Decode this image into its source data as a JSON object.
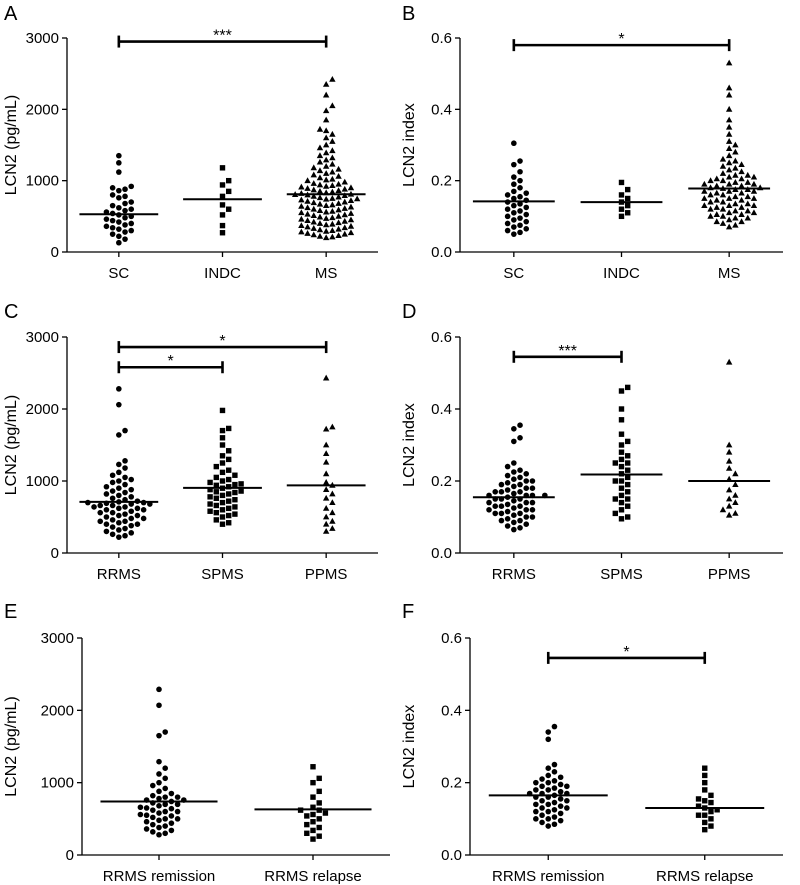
{
  "panels": [
    {
      "id": "A",
      "panel_label": "A"
    },
    {
      "id": "B",
      "panel_label": "B"
    },
    {
      "id": "C",
      "panel_label": "C"
    },
    {
      "id": "D",
      "panel_label": "D"
    },
    {
      "id": "E",
      "panel_label": "E"
    },
    {
      "id": "F",
      "panel_label": "F"
    }
  ],
  "chart_data": [
    {
      "panel": "A",
      "type": "scatter",
      "ylabel": "LCN2 (pg/mL)",
      "ylim": [
        0,
        3000
      ],
      "yticks": [
        "0",
        "1000",
        "2000",
        "3000"
      ],
      "categories": [
        "SC",
        "INDC",
        "MS"
      ],
      "markers": [
        "circle",
        "square",
        "triangle"
      ],
      "medians": [
        530,
        740,
        810
      ],
      "groups": [
        [
          1350,
          1250,
          1120,
          920,
          900,
          880,
          860,
          800,
          780,
          760,
          700,
          680,
          650,
          620,
          600,
          580,
          560,
          540,
          520,
          500,
          480,
          460,
          440,
          420,
          400,
          380,
          360,
          340,
          320,
          300,
          280,
          250,
          220,
          180,
          130
        ],
        [
          1180,
          1000,
          940,
          850,
          780,
          660,
          600,
          520,
          370,
          270
        ],
        [
          2420,
          2350,
          2200,
          2050,
          1980,
          1850,
          1720,
          1700,
          1650,
          1600,
          1550,
          1500,
          1460,
          1420,
          1390,
          1350,
          1320,
          1290,
          1260,
          1230,
          1200,
          1180,
          1160,
          1140,
          1120,
          1100,
          1080,
          1060,
          1040,
          1020,
          1010,
          1000,
          980,
          960,
          950,
          940,
          930,
          920,
          910,
          900,
          890,
          880,
          870,
          860,
          850,
          840,
          830,
          820,
          810,
          805,
          800,
          790,
          780,
          770,
          760,
          750,
          745,
          740,
          730,
          720,
          710,
          700,
          690,
          680,
          670,
          660,
          650,
          640,
          630,
          620,
          610,
          600,
          590,
          580,
          570,
          560,
          550,
          540,
          530,
          520,
          510,
          500,
          490,
          480,
          470,
          460,
          450,
          440,
          430,
          420,
          410,
          400,
          390,
          380,
          370,
          360,
          350,
          340,
          330,
          320,
          310,
          300,
          290,
          280,
          270,
          260,
          250,
          240,
          230,
          220,
          210,
          200
        ]
      ],
      "brackets": [
        {
          "from": 0,
          "to": 2,
          "y": 2950,
          "label": "***"
        }
      ]
    },
    {
      "panel": "B",
      "type": "scatter",
      "ylabel": "LCN2 index",
      "ylim": [
        0,
        0.6
      ],
      "yticks": [
        "0.0",
        "0.2",
        "0.4",
        "0.6"
      ],
      "categories": [
        "SC",
        "INDC",
        "MS"
      ],
      "markers": [
        "circle",
        "square",
        "triangle"
      ],
      "medians": [
        0.142,
        0.14,
        0.178
      ],
      "groups": [
        [
          0.305,
          0.255,
          0.245,
          0.225,
          0.21,
          0.2,
          0.19,
          0.18,
          0.17,
          0.165,
          0.16,
          0.155,
          0.15,
          0.145,
          0.14,
          0.135,
          0.13,
          0.125,
          0.12,
          0.115,
          0.11,
          0.105,
          0.1,
          0.095,
          0.09,
          0.085,
          0.08,
          0.075,
          0.07,
          0.065,
          0.06,
          0.055,
          0.05
        ],
        [
          0.195,
          0.175,
          0.16,
          0.15,
          0.14,
          0.13,
          0.12,
          0.11,
          0.1
        ],
        [
          0.53,
          0.46,
          0.44,
          0.4,
          0.37,
          0.35,
          0.33,
          0.31,
          0.3,
          0.29,
          0.28,
          0.27,
          0.26,
          0.255,
          0.25,
          0.245,
          0.24,
          0.235,
          0.23,
          0.225,
          0.22,
          0.215,
          0.21,
          0.205,
          0.2,
          0.195,
          0.19,
          0.185,
          0.18,
          0.178,
          0.175,
          0.17,
          0.165,
          0.16,
          0.155,
          0.15,
          0.145,
          0.14,
          0.135,
          0.13,
          0.125,
          0.12,
          0.115,
          0.11,
          0.105,
          0.1,
          0.095,
          0.09,
          0.085,
          0.08,
          0.075,
          0.07,
          0.215,
          0.205,
          0.195,
          0.185,
          0.175,
          0.165,
          0.155,
          0.145,
          0.135,
          0.125,
          0.115,
          0.105,
          0.095,
          0.085,
          0.19,
          0.17,
          0.15,
          0.13,
          0.11,
          0.2,
          0.18,
          0.16,
          0.14,
          0.12,
          0.1,
          0.21,
          0.19,
          0.17,
          0.15,
          0.13
        ]
      ],
      "brackets": [
        {
          "from": 0,
          "to": 2,
          "y": 0.58,
          "label": "*"
        }
      ]
    },
    {
      "panel": "C",
      "type": "scatter",
      "ylabel": "LCN2 (pg/mL)",
      "ylim": [
        0,
        3000
      ],
      "yticks": [
        "0",
        "1000",
        "2000",
        "3000"
      ],
      "categories": [
        "RRMS",
        "SPMS",
        "PPMS"
      ],
      "markers": [
        "circle",
        "square",
        "triangle"
      ],
      "medians": [
        710,
        905,
        940
      ],
      "groups": [
        [
          2280,
          2060,
          1700,
          1640,
          1280,
          1230,
          1180,
          1120,
          1080,
          1050,
          1020,
          1000,
          980,
          950,
          920,
          900,
          880,
          860,
          840,
          820,
          800,
          780,
          760,
          740,
          720,
          710,
          700,
          690,
          680,
          660,
          640,
          620,
          600,
          580,
          560,
          540,
          520,
          500,
          480,
          460,
          440,
          420,
          400,
          380,
          360,
          340,
          320,
          300,
          280,
          260,
          240,
          220,
          600,
          560,
          520,
          480,
          440,
          400,
          700,
          680,
          660,
          640,
          620
        ],
        [
          1980,
          1730,
          1700,
          1600,
          1500,
          1420,
          1350,
          1300,
          1250,
          1200,
          1150,
          1120,
          1080,
          1050,
          1020,
          1000,
          980,
          960,
          940,
          920,
          900,
          880,
          860,
          840,
          820,
          800,
          780,
          760,
          740,
          720,
          700,
          680,
          660,
          640,
          620,
          600,
          580,
          560,
          540,
          520,
          500,
          460,
          420,
          400,
          950,
          850
        ],
        [
          2430,
          1750,
          1720,
          1500,
          1380,
          1260,
          1100,
          980,
          940,
          880,
          820,
          760,
          700,
          620,
          560,
          500,
          440,
          400,
          340,
          300
        ]
      ],
      "brackets": [
        {
          "from": 0,
          "to": 2,
          "y": 2860,
          "label": "*"
        },
        {
          "from": 0,
          "to": 1,
          "y": 2580,
          "label": "*"
        }
      ]
    },
    {
      "panel": "D",
      "type": "scatter",
      "ylabel": "LCN2 index",
      "ylim": [
        0,
        0.6
      ],
      "yticks": [
        "0.0",
        "0.2",
        "0.4",
        "0.6"
      ],
      "categories": [
        "RRMS",
        "SPMS",
        "PPMS"
      ],
      "markers": [
        "circle",
        "square",
        "triangle"
      ],
      "medians": [
        0.155,
        0.218,
        0.2
      ],
      "groups": [
        [
          0.355,
          0.345,
          0.32,
          0.31,
          0.25,
          0.24,
          0.23,
          0.225,
          0.22,
          0.215,
          0.21,
          0.205,
          0.2,
          0.195,
          0.19,
          0.185,
          0.18,
          0.175,
          0.17,
          0.165,
          0.16,
          0.155,
          0.15,
          0.145,
          0.14,
          0.135,
          0.13,
          0.125,
          0.12,
          0.115,
          0.11,
          0.105,
          0.1,
          0.095,
          0.09,
          0.085,
          0.08,
          0.075,
          0.07,
          0.065,
          0.2,
          0.19,
          0.18,
          0.17,
          0.16,
          0.15,
          0.14,
          0.13,
          0.12,
          0.11,
          0.1,
          0.09,
          0.16,
          0.15,
          0.14,
          0.13,
          0.12,
          0.11,
          0.17,
          0.16
        ],
        [
          0.46,
          0.45,
          0.4,
          0.37,
          0.33,
          0.31,
          0.3,
          0.28,
          0.27,
          0.26,
          0.25,
          0.24,
          0.23,
          0.22,
          0.21,
          0.2,
          0.19,
          0.18,
          0.17,
          0.16,
          0.15,
          0.14,
          0.13,
          0.12,
          0.11,
          0.1,
          0.095,
          0.25,
          0.2,
          0.15
        ],
        [
          0.53,
          0.3,
          0.28,
          0.255,
          0.235,
          0.22,
          0.205,
          0.19,
          0.175,
          0.16,
          0.15,
          0.14,
          0.13,
          0.12,
          0.11,
          0.105
        ]
      ],
      "brackets": [
        {
          "from": 0,
          "to": 1,
          "y": 0.545,
          "label": "***"
        }
      ]
    },
    {
      "panel": "E",
      "type": "scatter",
      "ylabel": "LCN2 (pg/mL)",
      "ylim": [
        0,
        3000
      ],
      "yticks": [
        "0",
        "1000",
        "2000",
        "3000"
      ],
      "categories": [
        "RRMS remission",
        "RRMS relapse"
      ],
      "markers": [
        "circle",
        "square"
      ],
      "medians": [
        740,
        630
      ],
      "groups": [
        [
          2290,
          2070,
          1700,
          1650,
          1290,
          1200,
          1120,
          1060,
          1000,
          960,
          920,
          880,
          850,
          820,
          800,
          780,
          760,
          740,
          720,
          700,
          680,
          660,
          640,
          620,
          600,
          580,
          560,
          540,
          520,
          500,
          480,
          460,
          440,
          420,
          400,
          380,
          360,
          340,
          320,
          300,
          280,
          700,
          650,
          600,
          550,
          500,
          800,
          760
        ],
        [
          1220,
          1060,
          1000,
          880,
          800,
          720,
          660,
          620,
          580,
          540,
          500,
          460,
          420,
          380,
          340,
          300,
          260,
          220,
          620,
          560
        ]
      ],
      "brackets": []
    },
    {
      "panel": "F",
      "type": "scatter",
      "ylabel": "LCN2 index",
      "ylim": [
        0,
        0.6
      ],
      "yticks": [
        "0.0",
        "0.2",
        "0.4",
        "0.6"
      ],
      "categories": [
        "RRMS remission",
        "RRMS relapse"
      ],
      "markers": [
        "circle",
        "square"
      ],
      "medians": [
        0.165,
        0.13
      ],
      "groups": [
        [
          0.355,
          0.34,
          0.32,
          0.25,
          0.24,
          0.23,
          0.22,
          0.215,
          0.21,
          0.205,
          0.2,
          0.195,
          0.19,
          0.185,
          0.18,
          0.175,
          0.17,
          0.165,
          0.16,
          0.155,
          0.15,
          0.145,
          0.14,
          0.135,
          0.13,
          0.125,
          0.12,
          0.115,
          0.11,
          0.105,
          0.1,
          0.095,
          0.09,
          0.085,
          0.08,
          0.2,
          0.18,
          0.16,
          0.14,
          0.12,
          0.1,
          0.17,
          0.15,
          0.13,
          0.19,
          0.17
        ],
        [
          0.24,
          0.22,
          0.2,
          0.18,
          0.165,
          0.155,
          0.145,
          0.135,
          0.13,
          0.125,
          0.12,
          0.11,
          0.1,
          0.09,
          0.08,
          0.07,
          0.15,
          0.11
        ]
      ],
      "brackets": [
        {
          "from": 0,
          "to": 1,
          "y": 0.545,
          "label": "*"
        }
      ]
    }
  ]
}
